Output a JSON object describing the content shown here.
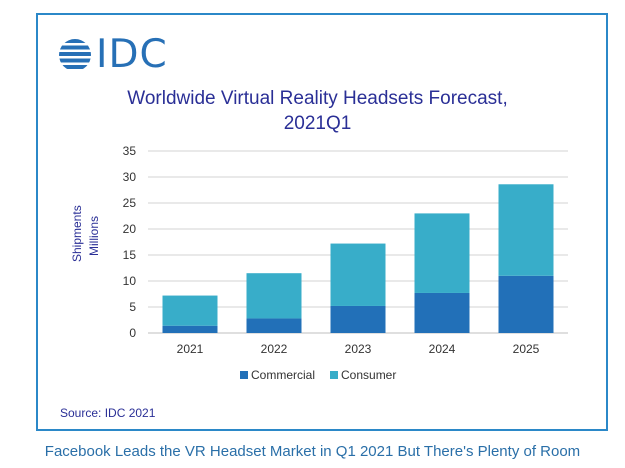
{
  "logo": {
    "text": "IDC",
    "color": "#2770b6"
  },
  "source": "Source: IDC 2021",
  "caption": "Facebook Leads the VR Headset Market in Q1 2021 But There's Plenty of Room",
  "colors": {
    "commercial": "#2270b8",
    "consumer": "#38adc9",
    "grid": "#d3d3d3",
    "title": "#2a2f96"
  },
  "chart_data": {
    "type": "bar",
    "stacked": true,
    "title": [
      "Worldwide Virtual Reality Headsets Forecast,",
      "2021Q1"
    ],
    "ylabel": [
      "Shipments",
      "Millions"
    ],
    "xlabel": "",
    "categories": [
      "2021",
      "2022",
      "2023",
      "2024",
      "2025"
    ],
    "series": [
      {
        "name": "Commercial",
        "values": [
          1.4,
          2.8,
          5.2,
          7.7,
          11.0
        ]
      },
      {
        "name": "Consumer",
        "values": [
          5.8,
          8.7,
          12.0,
          15.3,
          17.6
        ]
      }
    ],
    "ylim": [
      0,
      35
    ],
    "yticks": [
      0,
      5,
      10,
      15,
      20,
      25,
      30,
      35
    ],
    "grid": true,
    "legend_position": "bottom"
  }
}
